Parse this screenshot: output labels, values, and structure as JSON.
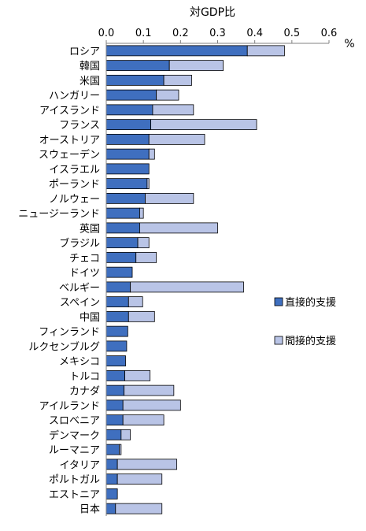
{
  "chart_data": {
    "type": "bar",
    "orientation": "horizontal",
    "stacked": true,
    "title": "対GDP比",
    "unit": "%",
    "xlim": [
      0,
      0.6
    ],
    "x_ticks": [
      "0.0",
      "0.1",
      "0.2",
      "0.3",
      "0.4",
      "0.5",
      "0.6"
    ],
    "grid": false,
    "legend_position": "right",
    "categories": [
      "ロシア",
      "韓国",
      "米国",
      "ハンガリー",
      "アイスランド",
      "フランス",
      "オーストリア",
      "スウェーデン",
      "イスラエル",
      "ポーランド",
      "ノルウェー",
      "ニュージーランド",
      "英国",
      "ブラジル",
      "チェコ",
      "ドイツ",
      "ベルギー",
      "スペイン",
      "中国",
      "フィンランド",
      "ルクセンブルグ",
      "メキシコ",
      "トルコ",
      "カナダ",
      "アイルランド",
      "スロベニア",
      "デンマーク",
      "ルーマニア",
      "イタリア",
      "ポルトガル",
      "エストニア",
      "日本"
    ],
    "series": [
      {
        "name": "直接的支援",
        "color": "#3f6fbf",
        "values": [
          0.38,
          0.17,
          0.155,
          0.135,
          0.125,
          0.12,
          0.115,
          0.115,
          0.115,
          0.11,
          0.105,
          0.09,
          0.09,
          0.085,
          0.08,
          0.07,
          0.065,
          0.06,
          0.06,
          0.058,
          0.055,
          0.052,
          0.05,
          0.048,
          0.045,
          0.045,
          0.04,
          0.035,
          0.03,
          0.03,
          0.03,
          0.025
        ]
      },
      {
        "name": "間接的支援",
        "color": "#b9c4e6",
        "values": [
          0.1,
          0.145,
          0.075,
          0.06,
          0.11,
          0.285,
          0.15,
          0.015,
          0,
          0.005,
          0.13,
          0.01,
          0.21,
          0.03,
          0.055,
          0,
          0.305,
          0.038,
          0.07,
          0,
          0,
          0,
          0.068,
          0.134,
          0.155,
          0.11,
          0.025,
          0.005,
          0.16,
          0.12,
          0,
          0.125
        ]
      }
    ]
  }
}
